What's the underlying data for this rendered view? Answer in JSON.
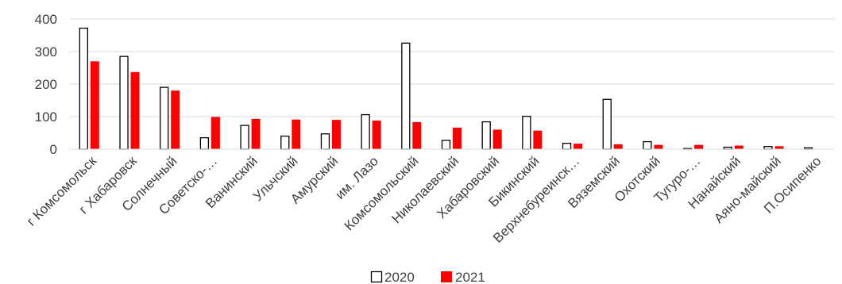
{
  "chart_data": {
    "type": "bar",
    "title": "",
    "xlabel": "",
    "ylabel": "",
    "ylim": [
      0,
      400
    ],
    "yticks": [
      0,
      100,
      200,
      300,
      400
    ],
    "grid": true,
    "legend_position": "bottom",
    "categories": [
      "г Комсомольск",
      "г Хабаровск",
      "Солнечный",
      "Советско-…",
      "Ванинский",
      "Ульчский",
      "Амурский",
      "им. Лазо",
      "Комсомольский",
      "Николаевский",
      "Хабаровский",
      "Бикинский",
      "Верхнебуреинск…",
      "Вяземский",
      "Охотский",
      "Тугуро-…",
      "Нанайский",
      "Аяно-майский",
      "П.Осипенко"
    ],
    "series": [
      {
        "name": "2020",
        "style": "outline",
        "color": "#000000",
        "values": [
          372,
          285,
          190,
          35,
          73,
          40,
          47,
          106,
          326,
          27,
          84,
          101,
          18,
          153,
          23,
          2,
          6,
          8,
          4
        ]
      },
      {
        "name": "2021",
        "style": "filled",
        "color": "#ff0000",
        "values": [
          270,
          237,
          180,
          99,
          93,
          91,
          90,
          88,
          83,
          66,
          60,
          57,
          17,
          15,
          13,
          13,
          11,
          9,
          0
        ]
      }
    ]
  }
}
